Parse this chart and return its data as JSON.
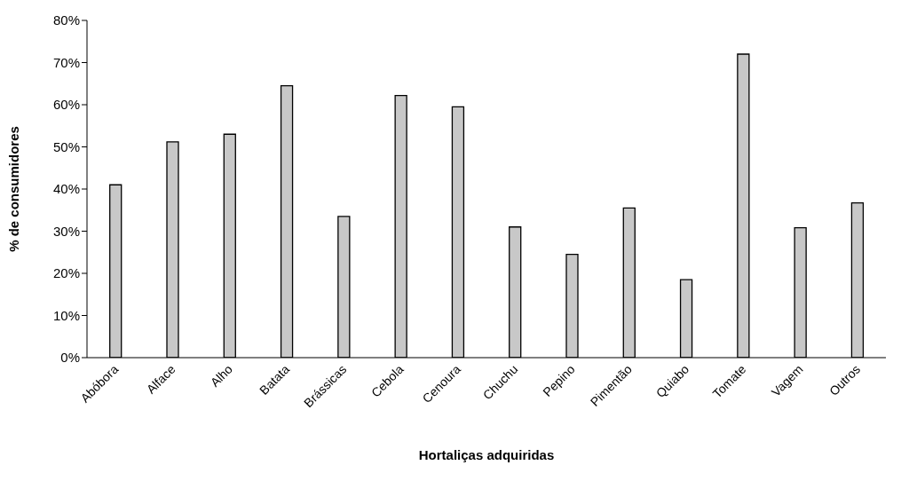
{
  "chart_data": {
    "type": "bar",
    "xlabel": "Hortaliças adquiridas",
    "ylabel": "% de consumidores",
    "categories": [
      "Abóbora",
      "Alface",
      "Alho",
      "Batata",
      "Brássicas",
      "Cebola",
      "Cenoura",
      "Chuchu",
      "Pepino",
      "Pimentão",
      "Quiabo",
      "Tomate",
      "Vagem",
      "Outros"
    ],
    "values": [
      41,
      51.2,
      53,
      64.5,
      33.5,
      62.2,
      59.5,
      31,
      24.5,
      35.5,
      18.5,
      72,
      30.8,
      36.7
    ],
    "color": "#c8c8c8",
    "ylim": [
      0,
      80
    ],
    "yticks": [
      {
        "value": 0,
        "label": "0%"
      },
      {
        "value": 10,
        "label": "10%"
      },
      {
        "value": 20,
        "label": "20%"
      },
      {
        "value": 30,
        "label": "30%"
      },
      {
        "value": 40,
        "label": "40%"
      },
      {
        "value": 50,
        "label": "50%"
      },
      {
        "value": 60,
        "label": "60%"
      },
      {
        "value": 70,
        "label": "70%"
      },
      {
        "value": 80,
        "label": "80%"
      }
    ],
    "grid": false,
    "legend": false
  }
}
